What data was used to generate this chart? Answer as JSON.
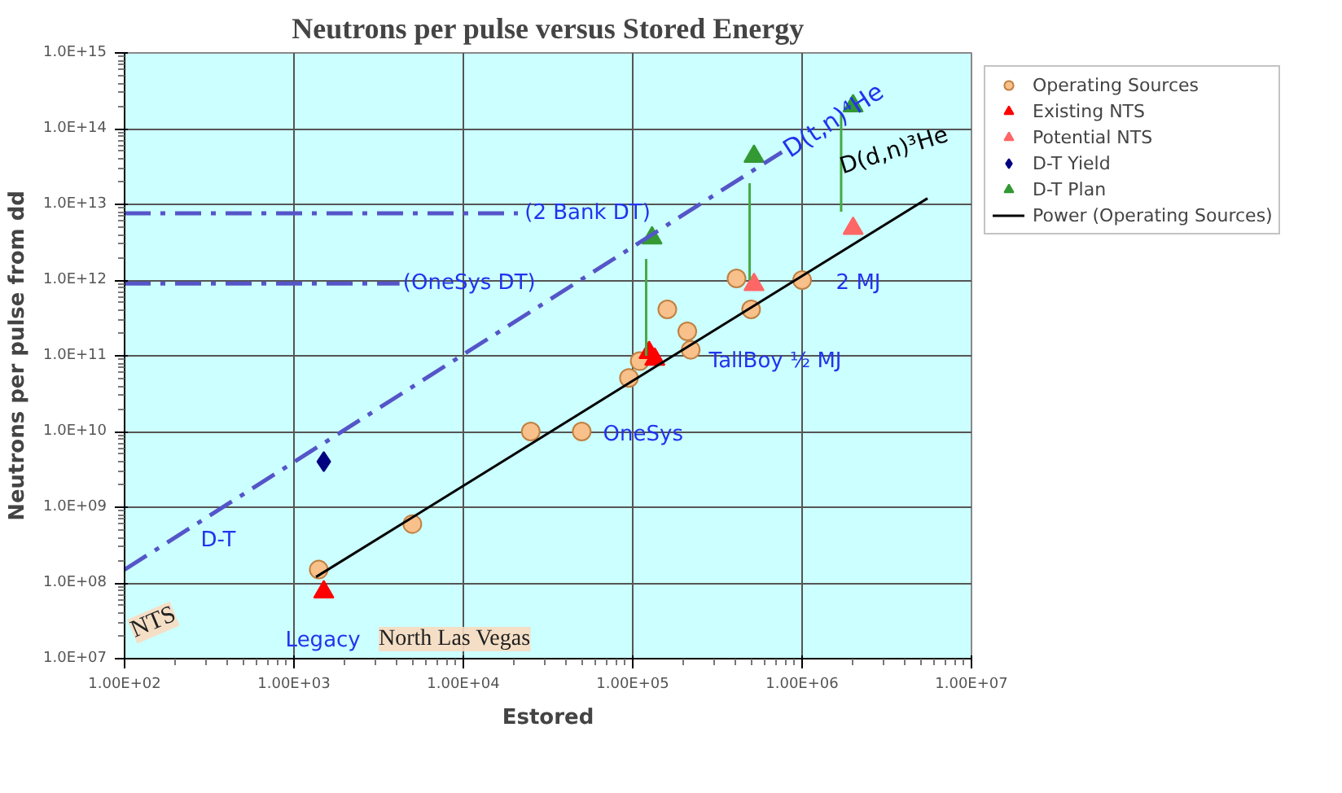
{
  "chart_data": {
    "type": "scatter",
    "title": "Neutrons per pulse versus Stored Energy",
    "xlabel": "Estored",
    "ylabel": "Neutrons per pulse from dd",
    "log": "xy",
    "grid": true,
    "legend": "right",
    "xlim": [
      100,
      10000000
    ],
    "ylim": [
      10000000,
      1000000000000000
    ],
    "xticks": [
      {
        "value": 100,
        "label": "1.00E+02"
      },
      {
        "value": 1000,
        "label": "1.00E+03"
      },
      {
        "value": 10000,
        "label": "1.00E+04"
      },
      {
        "value": 100000,
        "label": "1.00E+05"
      },
      {
        "value": 1000000,
        "label": "1.00E+06"
      },
      {
        "value": 10000000,
        "label": "1.00E+07"
      }
    ],
    "yticks": [
      {
        "value": 10000000,
        "label": "1.0E+07"
      },
      {
        "value": 100000000,
        "label": "1.0E+08"
      },
      {
        "value": 1000000000,
        "label": "1.0E+09"
      },
      {
        "value": 10000000000,
        "label": "1.0E+10"
      },
      {
        "value": 100000000000,
        "label": "1.0E+11"
      },
      {
        "value": 1000000000000,
        "label": "1.0E+12"
      },
      {
        "value": 10000000000000,
        "label": "1.0E+13"
      },
      {
        "value": 100000000000000,
        "label": "1.0E+14"
      },
      {
        "value": 1000000000000000,
        "label": "1.0E+15"
      }
    ],
    "series": [
      {
        "name": "Operating Sources",
        "marker": "circle",
        "color": "#f8c08a",
        "x": [
          1400,
          5000,
          25000,
          50000,
          95000,
          110000,
          160000,
          210000,
          220000,
          410000,
          500000,
          1000000
        ],
        "values": [
          150000000,
          600000000,
          10000000000,
          10000000000,
          51000000000,
          85000000000,
          410000000000,
          210000000000,
          120000000000,
          1050000000000,
          410000000000,
          1000000000000
        ]
      },
      {
        "name": "Existing NTS",
        "marker": "triangle",
        "color": "#ff0000",
        "x": [
          1500,
          125000,
          135000
        ],
        "values": [
          76000000,
          110000000000,
          90000000000
        ]
      },
      {
        "name": "Potential NTS",
        "marker": "triangle",
        "color": "#ff6666",
        "x": [
          520000,
          2000000
        ],
        "values": [
          870000000000,
          4800000000000
        ]
      },
      {
        "name": "D-T Yield",
        "marker": "diamond",
        "color": "#000080",
        "x": [
          1500
        ],
        "values": [
          4000000000
        ]
      },
      {
        "name": "D-T Plan",
        "marker": "triangle",
        "color": "#339933",
        "x": [
          130000,
          520000,
          2000000
        ],
        "values": [
          3600000000000,
          43000000000000,
          200000000000000
        ]
      },
      {
        "name": "Power (Operating Sources)",
        "type": "line",
        "line_style": "solid",
        "color": "#000000",
        "x": [
          1350,
          5500000
        ],
        "values": [
          120000000,
          12000000000000
        ]
      },
      {
        "type": "line",
        "line_style": "dashdot",
        "color": "#5555c8",
        "x": [
          100,
          760000
        ],
        "values": [
          150000000,
          49000000000000
        ]
      },
      {
        "type": "line",
        "line_style": "dashdot",
        "color": "#5555c8",
        "x": [
          100,
          21000
        ],
        "values": [
          7600000000000,
          7600000000000
        ]
      },
      {
        "type": "line",
        "line_style": "dashdot",
        "color": "#5555c8",
        "x": [
          100,
          4200
        ],
        "values": [
          900000000000,
          900000000000
        ]
      },
      {
        "type": "line",
        "line_style": "solid",
        "color": "#44aa44",
        "x": [
          120000,
          120000
        ],
        "values": [
          100000000000,
          1900000000000
        ]
      },
      {
        "type": "line",
        "line_style": "solid",
        "color": "#44aa44",
        "x": [
          490000,
          490000
        ],
        "values": [
          1000000000000,
          19000000000000
        ]
      },
      {
        "type": "line",
        "line_style": "solid",
        "color": "#44aa44",
        "x": [
          1700000,
          1700000
        ],
        "values": [
          8000000000000,
          160000000000000
        ]
      }
    ],
    "annotations": [
      {
        "text": "(2  Bank DT)",
        "x": 23000,
        "y": 7600000000000
      },
      {
        "text": "(OneSys DT)",
        "x": 4400,
        "y": 900000000000
      },
      {
        "text": "D(t,n)⁴He",
        "x": 800000,
        "y": 50000000000000
      },
      "D(d,n)³He",
      "2 MJ",
      "TallBoy ½ MJ",
      "OneSys",
      "D-T",
      "Legacy",
      "NTS",
      "North Las Vegas"
    ]
  }
}
